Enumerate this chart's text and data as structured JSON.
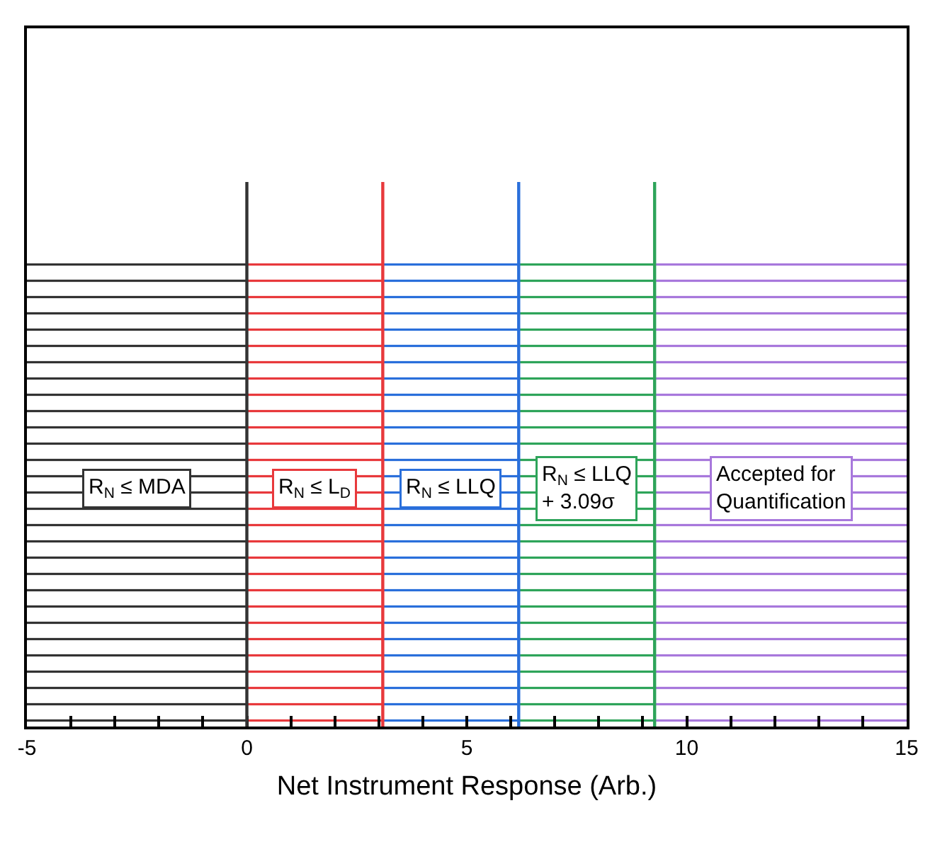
{
  "chart_data": {
    "type": "bar",
    "orientation": "horizontal",
    "stacked": true,
    "xlabel": "Net Instrument Response (Arb.)",
    "categories": [
      null
    ],
    "series": [
      {
        "name": "R$_{N}$ ≤ MDA",
        "color": "#333333",
        "values": [
          -5
        ]
      },
      {
        "name": "R$_{N}$ ≤ L$_{D}$",
        "color": "#e8393c",
        "values": [
          3.09
        ]
      },
      {
        "name": "R$_{N}$ ≤ LLQ",
        "color": "#2a6fdb",
        "values": [
          3.09
        ]
      },
      {
        "name": "R$_{N}$ ≤ LLQ\n+ 3.09σ",
        "color": "#2ea45a",
        "values": [
          3.09
        ]
      },
      {
        "name": "Accepted for\nQuantification",
        "color": "#a878dc",
        "values": [
          5.73
        ]
      }
    ],
    "xlim": [
      -5,
      15
    ],
    "xticks": [
      -5,
      {
        "value": -4,
        "label": null
      },
      {
        "value": -3,
        "label": null
      },
      {
        "value": -2,
        "label": null
      },
      {
        "value": -1,
        "label": null
      },
      0,
      {
        "value": 1,
        "label": null
      },
      {
        "value": 2,
        "label": null
      },
      {
        "value": 3,
        "label": null
      },
      {
        "value": 4,
        "label": null
      },
      5,
      {
        "value": 6,
        "label": null
      },
      {
        "value": 7,
        "label": null
      },
      {
        "value": 8,
        "label": null
      },
      {
        "value": 9,
        "label": null
      },
      10,
      {
        "value": 11,
        "label": null
      },
      {
        "value": 12,
        "label": null
      },
      {
        "value": 13,
        "label": null
      },
      {
        "value": 14,
        "label": null
      },
      15
    ],
    "tick_labels": "x",
    "ref_lines": [
      {
        "axis": "x",
        "value": 0,
        "color": "#333333"
      },
      {
        "axis": "x",
        "value": 3.09,
        "color": "#e8393c"
      },
      {
        "axis": "x",
        "value": 6.18,
        "color": "#2a6fdb"
      },
      {
        "axis": "x",
        "value": 9.27,
        "color": "#2ea45a"
      }
    ]
  }
}
